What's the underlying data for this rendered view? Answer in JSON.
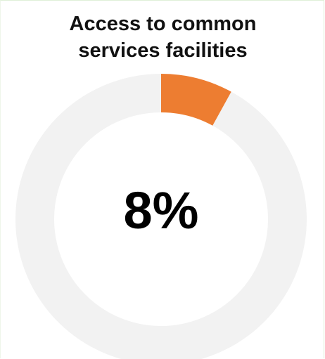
{
  "chart_data": {
    "type": "pie",
    "title_lines": [
      "Access to common",
      "services facilities"
    ],
    "value_percent": 8,
    "center_label": "8%",
    "colors": {
      "value": "#ed7d31",
      "remainder": "#f2f2f2",
      "text": "#000000"
    }
  }
}
